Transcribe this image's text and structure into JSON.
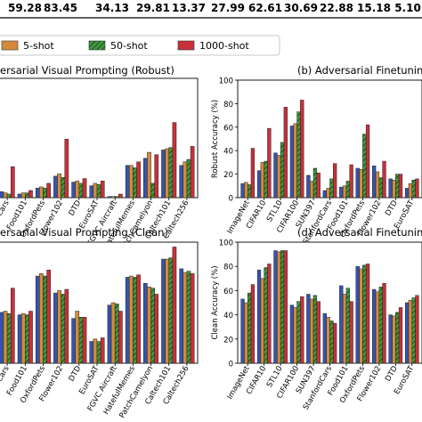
{
  "top_row": [
    "59.28",
    "83.45",
    "34.13",
    "29.81",
    "13.37",
    "27.99",
    "62.61",
    "30.69",
    "22.88",
    "15.18",
    "5.10",
    "17.53"
  ],
  "legend": [
    {
      "label": "5-shot",
      "color": "#d58a3a",
      "pattern": "none"
    },
    {
      "label": "50-shot",
      "color": "#3e9c3e",
      "pattern": "hatch"
    },
    {
      "label": "1000-shot",
      "color": "#c8303a",
      "pattern": "none"
    }
  ],
  "colors": {
    "blue": "#3554b0",
    "orange": "#d58a3a",
    "green": "#3e9c3e",
    "red": "#c8303a"
  },
  "chart_data": [
    {
      "type": "bar",
      "title": "ersarial Visual Prompting (Robust)",
      "ylabel": "",
      "ylim": [
        0,
        100
      ],
      "yticks": [],
      "categories": [
        "Cars",
        "Food101",
        "OxfordPets",
        "Flower102",
        "DTD",
        "EuroSAT",
        "FGVC Aircraft",
        "HatefulMemes",
        "PatchCamelyon",
        "Caltech101",
        "Caltech256"
      ],
      "series": [
        {
          "values": [
            5,
            3,
            8,
            18,
            13,
            10,
            1,
            27,
            33,
            40,
            27
          ]
        },
        {
          "values": [
            4,
            4,
            9,
            20,
            14,
            12,
            1,
            27,
            38,
            41,
            30
          ]
        },
        {
          "values": [
            3,
            4,
            8,
            17,
            12,
            11,
            1,
            25,
            12,
            42,
            32
          ]
        },
        {
          "values": [
            26,
            6,
            12,
            49,
            16,
            14,
            3,
            30,
            36,
            63,
            43
          ]
        }
      ]
    },
    {
      "type": "bar",
      "title": "(b) Adversarial Finetunin",
      "ylabel": "Robust Accuracy (%)",
      "ylim": [
        0,
        100
      ],
      "yticks": [
        "0",
        "20",
        "40",
        "60",
        "80",
        "100"
      ],
      "categories": [
        "ImageNet",
        "CIFAR10",
        "STL10",
        "CIFAR100",
        "SUN397",
        "StanfordCars",
        "Food101",
        "OxfordPets",
        "Flower102",
        "DTD",
        "EuroSAT"
      ],
      "series": [
        {
          "values": [
            12,
            23,
            38,
            61,
            19,
            6,
            9,
            25,
            27,
            16,
            8
          ]
        },
        {
          "values": [
            13,
            30,
            36,
            63,
            14,
            8,
            10,
            24,
            22,
            15,
            12
          ]
        },
        {
          "values": [
            11,
            31,
            47,
            73,
            25,
            16,
            14,
            54,
            17,
            20,
            15
          ]
        },
        {
          "values": [
            42,
            59,
            77,
            83,
            21,
            29,
            28,
            62,
            31,
            20,
            16
          ]
        }
      ]
    },
    {
      "type": "bar",
      "title": "ersarial Visual Prompting (Clean)",
      "ylabel": "",
      "ylim": [
        0,
        100
      ],
      "yticks": [],
      "categories": [
        "Cars",
        "Food101",
        "OxfordPets",
        "Flower102",
        "DTD",
        "EuroSAT",
        "FGVC Aircraft",
        "HatefulMemes",
        "PatchCamelyon",
        "Caltech101",
        "Caltech256"
      ],
      "series": [
        {
          "values": [
            42,
            40,
            72,
            58,
            37,
            18,
            48,
            71,
            66,
            86,
            78
          ]
        },
        {
          "values": [
            43,
            41,
            74,
            60,
            43,
            20,
            50,
            72,
            63,
            86,
            75
          ]
        },
        {
          "values": [
            41,
            40,
            72,
            57,
            38,
            18,
            49,
            71,
            62,
            87,
            76
          ]
        },
        {
          "values": [
            62,
            43,
            77,
            61,
            38,
            21,
            43,
            73,
            57,
            96,
            74
          ]
        }
      ]
    },
    {
      "type": "bar",
      "title": "(d) Adversarial Finetunin",
      "ylabel": "Clean Accuracy (%)",
      "ylim": [
        0,
        100
      ],
      "yticks": [
        "0",
        "20",
        "40",
        "60",
        "80",
        "100"
      ],
      "categories": [
        "ImageNet",
        "CIFAR10",
        "STL10",
        "CIFAR100",
        "SUN397",
        "StanfordCars",
        "Food101",
        "OxfordPets",
        "Flower102",
        "DTD",
        "EuroSAT"
      ],
      "series": [
        {
          "values": [
            53,
            77,
            93,
            48,
            57,
            41,
            64,
            80,
            61,
            40,
            50
          ]
        },
        {
          "values": [
            50,
            70,
            92,
            46,
            53,
            38,
            57,
            78,
            59,
            39,
            52
          ]
        },
        {
          "values": [
            58,
            79,
            93,
            51,
            56,
            35,
            62,
            81,
            63,
            42,
            54
          ]
        },
        {
          "values": [
            65,
            82,
            93,
            55,
            51,
            33,
            51,
            82,
            66,
            46,
            56
          ]
        }
      ]
    }
  ]
}
